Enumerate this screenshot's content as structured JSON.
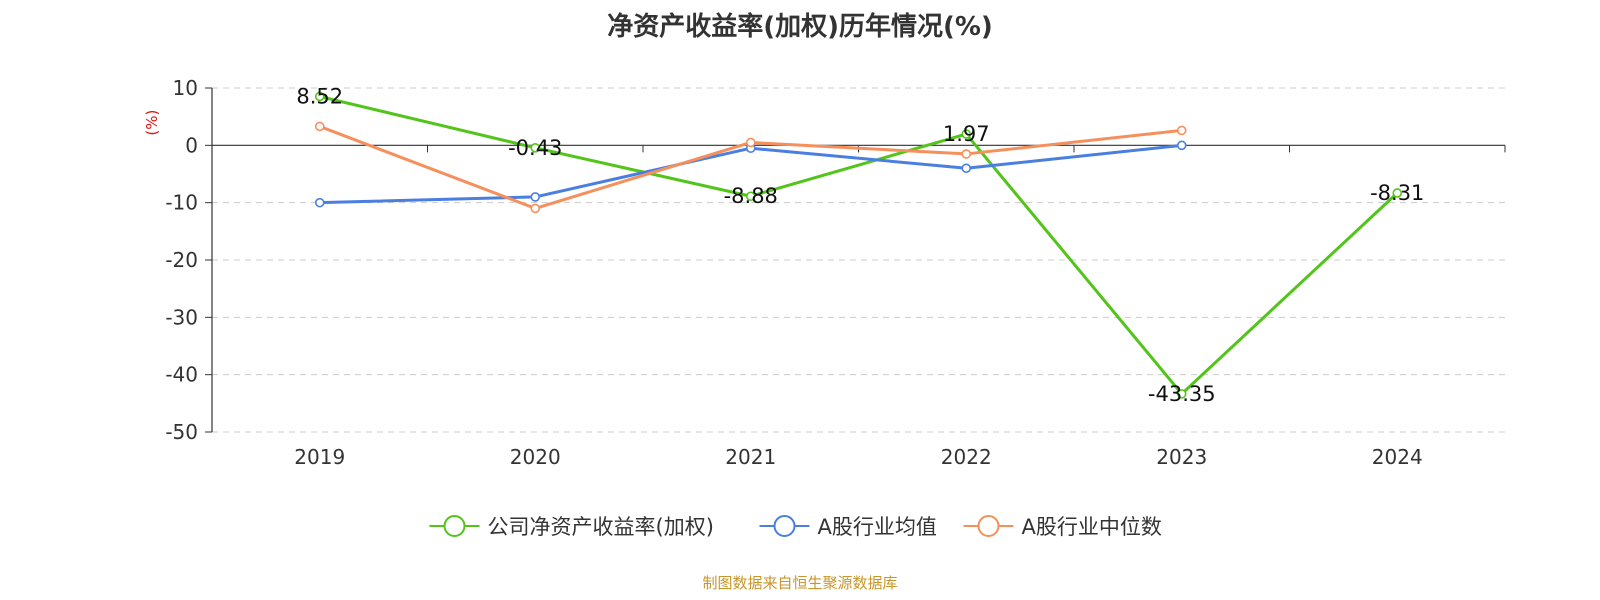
{
  "chart_data": {
    "type": "line",
    "title": "净资产收益率(加权)历年情况(%)",
    "ylabel": "(%)",
    "xlabel": "",
    "categories": [
      "2019",
      "2020",
      "2021",
      "2022",
      "2023",
      "2024"
    ],
    "ylim": [
      -50,
      10
    ],
    "yticks": [
      10,
      0,
      -10,
      -20,
      -30,
      -40,
      -50
    ],
    "grid": true,
    "legend": "bottom",
    "series": [
      {
        "name": "公司净资产收益率(加权)",
        "color": "#52c41a",
        "values": [
          8.52,
          -0.43,
          -8.88,
          1.97,
          -43.35,
          -8.31
        ],
        "labels": [
          "8.52",
          "-0.43",
          "-8.88",
          "1.97",
          "-43.35",
          "-8.31"
        ]
      },
      {
        "name": "A股行业均值",
        "color": "#4a7ee0",
        "values": [
          -10.0,
          -9.0,
          -0.5,
          -4.0,
          0.0,
          null
        ]
      },
      {
        "name": "A股行业中位数",
        "color": "#f5905c",
        "values": [
          3.3,
          -11.0,
          0.5,
          -1.5,
          2.6,
          null
        ]
      }
    ]
  },
  "source": "制图数据来自恒生聚源数据库"
}
